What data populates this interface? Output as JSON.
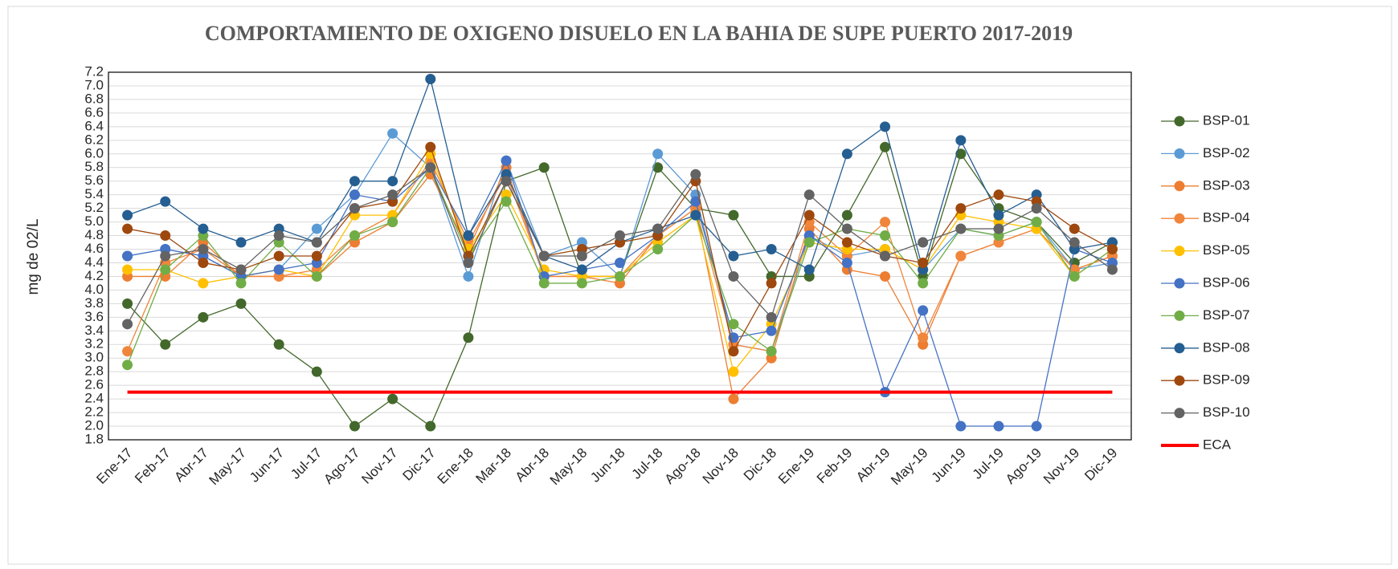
{
  "chart_data": {
    "type": "line",
    "title": "COMPORTAMIENTO DE OXIGENO DISUELO EN LA BAHIA DE SUPE PUERTO 2017-2019",
    "y_label": "mg de 02/L",
    "categories": [
      "Ene-17",
      "Feb-17",
      "Abr-17",
      "May-17",
      "Jun-17",
      "Jul-17",
      "Ago-17",
      "Nov-17",
      "Dic-17",
      "Ene-18",
      "Mar-18",
      "Abr-18",
      "May-18",
      "Jun-18",
      "Jul-18",
      "Ago-18",
      "Nov-18",
      "Dic-18",
      "Ene-19",
      "Feb-19",
      "Abr-19",
      "May-19",
      "Jun-19",
      "Jul-19",
      "Ago-19",
      "Nov-19",
      "Dic-19"
    ],
    "ylim": [
      1.8,
      7.2
    ],
    "yticks": [
      1.8,
      {
        "value": 2,
        "label": "2.0"
      },
      2.2,
      2.4,
      2.6,
      2.8,
      {
        "value": 3,
        "label": "3.0"
      },
      3.2,
      3.4,
      3.6,
      3.8,
      {
        "value": 4,
        "label": "4.0"
      },
      4.2,
      4.4,
      4.6,
      4.8,
      {
        "value": 5,
        "label": "5.0"
      },
      5.2,
      5.4,
      5.6,
      5.8,
      {
        "value": 6,
        "label": "6.0"
      },
      6.2,
      6.4,
      6.6,
      6.8,
      {
        "value": 7,
        "label": "7.0"
      },
      7.2
    ],
    "grid": true,
    "legend": "right",
    "series": [
      {
        "name": "BSP-01",
        "color": "#43682b",
        "values": [
          3.8,
          3.2,
          3.6,
          3.8,
          3.2,
          2.8,
          2.0,
          2.4,
          2.0,
          3.3,
          5.6,
          5.8,
          4.2,
          4.2,
          5.8,
          5.2,
          5.1,
          4.2,
          4.2,
          5.1,
          6.1,
          4.2,
          6.0,
          5.2,
          5.0,
          4.4,
          4.7
        ]
      },
      {
        "name": "BSP-02",
        "color": "#5b9bd5",
        "values": [
          4.5,
          4.6,
          4.5,
          4.2,
          4.3,
          4.9,
          5.4,
          6.3,
          5.8,
          4.2,
          5.9,
          4.5,
          4.7,
          4.2,
          6.0,
          5.4,
          3.2,
          3.1,
          4.8,
          4.5,
          4.6,
          4.3,
          4.9,
          4.8,
          5.0,
          4.3,
          4.4
        ]
      },
      {
        "name": "BSP-03",
        "color": "#ed7d31",
        "values": [
          4.2,
          4.2,
          4.7,
          4.2,
          4.2,
          4.2,
          4.7,
          5.0,
          5.7,
          4.6,
          5.8,
          4.2,
          4.2,
          4.1,
          4.8,
          5.2,
          2.4,
          3.0,
          4.9,
          4.3,
          4.2,
          3.2,
          4.5,
          4.7,
          4.9,
          4.3,
          4.5
        ]
      },
      {
        "name": "BSP-04",
        "color": "#f0853c",
        "values": [
          3.1,
          4.4,
          4.6,
          4.2,
          4.2,
          4.3,
          4.8,
          5.1,
          5.9,
          4.7,
          5.7,
          4.2,
          4.2,
          4.2,
          4.8,
          5.2,
          3.2,
          3.1,
          5.0,
          4.5,
          5.0,
          3.3,
          4.5,
          4.7,
          4.9,
          4.3,
          4.5
        ]
      },
      {
        "name": "BSP-05",
        "color": "#ffc000",
        "values": [
          4.3,
          4.3,
          4.1,
          4.2,
          4.3,
          4.2,
          5.1,
          5.1,
          6.0,
          4.6,
          5.4,
          4.3,
          4.2,
          4.2,
          4.7,
          5.1,
          2.8,
          3.5,
          4.7,
          4.6,
          4.6,
          4.3,
          5.1,
          5.0,
          4.9,
          4.2,
          4.6
        ]
      },
      {
        "name": "BSP-06",
        "color": "#4472c4",
        "values": [
          4.5,
          4.6,
          4.5,
          4.2,
          4.3,
          4.4,
          5.4,
          5.3,
          5.8,
          4.8,
          5.9,
          4.2,
          4.3,
          4.4,
          4.8,
          5.3,
          3.3,
          3.4,
          4.8,
          4.4,
          2.5,
          3.7,
          2.0,
          2.0,
          2.0,
          4.6,
          4.4
        ]
      },
      {
        "name": "BSP-07",
        "color": "#70ad47",
        "values": [
          2.9,
          4.3,
          4.8,
          4.1,
          4.7,
          4.2,
          4.8,
          5.0,
          5.8,
          4.5,
          5.3,
          4.1,
          4.1,
          4.2,
          4.6,
          5.1,
          3.5,
          3.1,
          4.7,
          4.9,
          4.8,
          4.1,
          4.9,
          4.8,
          5.0,
          4.2,
          4.6
        ]
      },
      {
        "name": "BSP-08",
        "color": "#255e91",
        "values": [
          5.1,
          5.3,
          4.9,
          4.7,
          4.9,
          4.7,
          5.6,
          5.6,
          7.1,
          4.8,
          5.7,
          4.5,
          4.3,
          4.7,
          4.9,
          5.1,
          4.5,
          4.6,
          4.3,
          6.0,
          6.4,
          4.3,
          6.2,
          5.1,
          5.4,
          4.6,
          4.7
        ]
      },
      {
        "name": "BSP-09",
        "color": "#9e480e",
        "values": [
          4.9,
          4.8,
          4.4,
          4.3,
          4.5,
          4.5,
          5.2,
          5.3,
          6.1,
          4.5,
          5.6,
          4.5,
          4.6,
          4.7,
          4.8,
          5.6,
          3.1,
          4.1,
          5.1,
          4.7,
          4.5,
          4.4,
          5.2,
          5.4,
          5.3,
          4.9,
          4.6
        ]
      },
      {
        "name": "BSP-10",
        "color": "#636363",
        "values": [
          3.5,
          4.5,
          4.6,
          4.3,
          4.8,
          4.7,
          5.2,
          5.4,
          5.8,
          4.4,
          5.6,
          4.5,
          4.5,
          4.8,
          4.9,
          5.7,
          4.2,
          3.6,
          5.4,
          4.9,
          4.5,
          4.7,
          4.9,
          4.9,
          5.2,
          4.7,
          4.3
        ]
      },
      {
        "name": "ECA",
        "color": "#ff0000",
        "marker": false,
        "line_width": 4,
        "values": [
          2.5,
          2.5,
          2.5,
          2.5,
          2.5,
          2.5,
          2.5,
          2.5,
          2.5,
          2.5,
          2.5,
          2.5,
          2.5,
          2.5,
          2.5,
          2.5,
          2.5,
          2.5,
          2.5,
          2.5,
          2.5,
          2.5,
          2.5,
          2.5,
          2.5,
          2.5,
          2.5
        ]
      }
    ]
  }
}
